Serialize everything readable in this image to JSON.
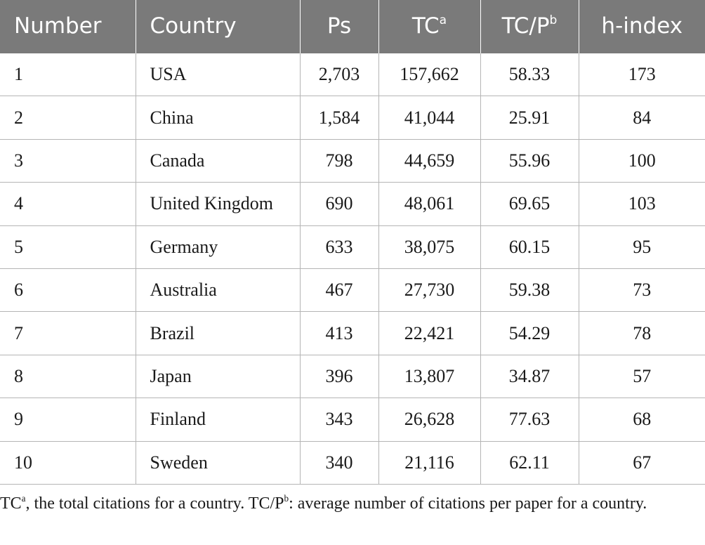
{
  "table": {
    "headers": {
      "number": "Number",
      "country": "Country",
      "ps": "Ps",
      "tc": "TC",
      "tc_sup": "a",
      "tcp": "TC/P",
      "tcp_sup": "b",
      "hindex": "h-index"
    },
    "rows": [
      {
        "number": "1",
        "country": "USA",
        "ps": "2,703",
        "tc": "157,662",
        "tcp": "58.33",
        "hindex": "173"
      },
      {
        "number": "2",
        "country": "China",
        "ps": "1,584",
        "tc": "41,044",
        "tcp": "25.91",
        "hindex": "84"
      },
      {
        "number": "3",
        "country": "Canada",
        "ps": "798",
        "tc": "44,659",
        "tcp": "55.96",
        "hindex": "100"
      },
      {
        "number": "4",
        "country": "United Kingdom",
        "ps": "690",
        "tc": "48,061",
        "tcp": "69.65",
        "hindex": "103"
      },
      {
        "number": "5",
        "country": "Germany",
        "ps": "633",
        "tc": "38,075",
        "tcp": "60.15",
        "hindex": "95"
      },
      {
        "number": "6",
        "country": "Australia",
        "ps": "467",
        "tc": "27,730",
        "tcp": "59.38",
        "hindex": "73"
      },
      {
        "number": "7",
        "country": "Brazil",
        "ps": "413",
        "tc": "22,421",
        "tcp": "54.29",
        "hindex": "78"
      },
      {
        "number": "8",
        "country": "Japan",
        "ps": "396",
        "tc": "13,807",
        "tcp": "34.87",
        "hindex": "57"
      },
      {
        "number": "9",
        "country": "Finland",
        "ps": "343",
        "tc": "26,628",
        "tcp": "77.63",
        "hindex": "68"
      },
      {
        "number": "10",
        "country": "Sweden",
        "ps": "340",
        "tc": "21,116",
        "tcp": "62.11",
        "hindex": "67"
      }
    ]
  },
  "footnote": {
    "a_term": "TC",
    "a_sup": "a",
    "a_text": ", the total citations for a country. ",
    "b_term": "TC/P",
    "b_sup": "b",
    "b_text": ": average number of citations per paper for a country."
  }
}
